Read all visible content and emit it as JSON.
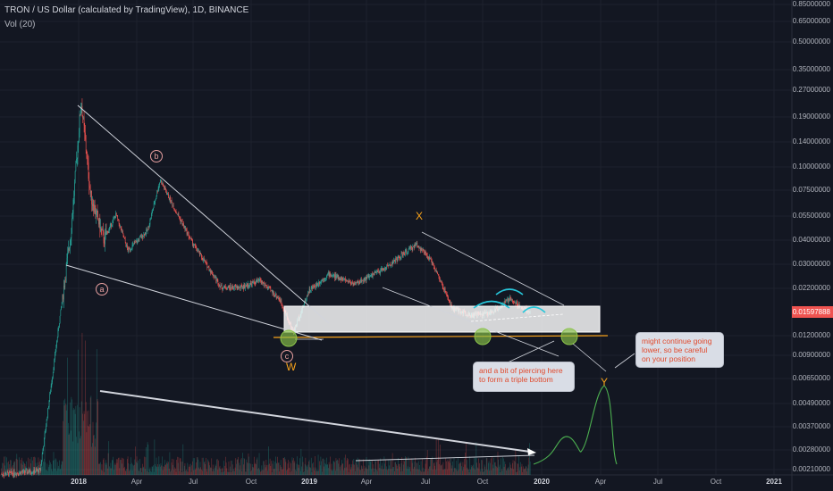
{
  "header": {
    "title": "TRON / US Dollar (calculated by TradingView), 1D, BINANCE",
    "volume_label": "Vol (20)"
  },
  "price_axis": {
    "ticks": [
      "0.85000000",
      "0.65000000",
      "0.50000000",
      "0.35000000",
      "0.27000000",
      "0.19000000",
      "0.14000000",
      "0.10000000",
      "0.07500000",
      "0.05500000",
      "0.04000000",
      "0.03000000",
      "0.02200000",
      "0.01200000",
      "0.00900000",
      "0.00650000",
      "0.00490000",
      "0.00370000",
      "0.00280000",
      "0.00210000"
    ],
    "last_price": "0.01597888",
    "last_price_color": "#ef5350"
  },
  "time_axis": {
    "ticks": [
      {
        "label": "2018",
        "year": true
      },
      {
        "label": "Apr",
        "year": false
      },
      {
        "label": "Jul",
        "year": false
      },
      {
        "label": "Oct",
        "year": false
      },
      {
        "label": "2019",
        "year": true
      },
      {
        "label": "Apr",
        "year": false
      },
      {
        "label": "Jul",
        "year": false
      },
      {
        "label": "Oct",
        "year": false
      },
      {
        "label": "2020",
        "year": true
      },
      {
        "label": "Apr",
        "year": false
      },
      {
        "label": "Jul",
        "year": false
      },
      {
        "label": "Oct",
        "year": false
      },
      {
        "label": "2021",
        "year": true
      }
    ]
  },
  "wave_labels": {
    "a": "a",
    "b": "b",
    "c": "c",
    "w": "W",
    "x": "X",
    "y": "Y"
  },
  "callouts": {
    "triple_bottom": "and a bit of piercing here to form a triple bottom",
    "caution": "might continue going lower, so be careful on your position"
  },
  "colors": {
    "background": "#131722",
    "up": "#26a69a",
    "down": "#ef5350",
    "trendline": "#d1d4dc",
    "support": "#f7a21b",
    "wave_label": "#f7a21b",
    "projection": "#4caf50",
    "arc": "#26c6da"
  },
  "chart_data": {
    "type": "candlestick",
    "symbol": "TRON / US Dollar",
    "interval": "1D",
    "exchange": "BINANCE",
    "scale": "log",
    "close_series": [
      {
        "date": "2017-09",
        "close": 0.0021
      },
      {
        "date": "2017-11",
        "close": 0.0022
      },
      {
        "date": "2017-12-20",
        "close": 0.045
      },
      {
        "date": "2018-01-05",
        "close": 0.23
      },
      {
        "date": "2018-01-20",
        "close": 0.07
      },
      {
        "date": "2018-02-10",
        "close": 0.04
      },
      {
        "date": "2018-03-01",
        "close": 0.055
      },
      {
        "date": "2018-03-20",
        "close": 0.035
      },
      {
        "date": "2018-04-20",
        "close": 0.045
      },
      {
        "date": "2018-05-10",
        "close": 0.085
      },
      {
        "date": "2018-06-01",
        "close": 0.06
      },
      {
        "date": "2018-07-01",
        "close": 0.038
      },
      {
        "date": "2018-08-15",
        "close": 0.022
      },
      {
        "date": "2018-09-15",
        "close": 0.022
      },
      {
        "date": "2018-10-15",
        "close": 0.024
      },
      {
        "date": "2018-11-15",
        "close": 0.019
      },
      {
        "date": "2018-12-07",
        "close": 0.0125
      },
      {
        "date": "2018-12-31",
        "close": 0.021
      },
      {
        "date": "2019-02-01",
        "close": 0.026
      },
      {
        "date": "2019-03-15",
        "close": 0.023
      },
      {
        "date": "2019-05-01",
        "close": 0.028
      },
      {
        "date": "2019-06-20",
        "close": 0.038
      },
      {
        "date": "2019-07-15",
        "close": 0.03
      },
      {
        "date": "2019-08-15",
        "close": 0.017
      },
      {
        "date": "2019-09-15",
        "close": 0.0155
      },
      {
        "date": "2019-10-15",
        "close": 0.016
      },
      {
        "date": "2019-11-15",
        "close": 0.019
      },
      {
        "date": "2019-12-17",
        "close": 0.01597888
      }
    ],
    "projection": [
      {
        "date": "2019-12-20",
        "close": 0.0125
      },
      {
        "date": "2020-03-01",
        "close": 0.0065
      }
    ]
  }
}
